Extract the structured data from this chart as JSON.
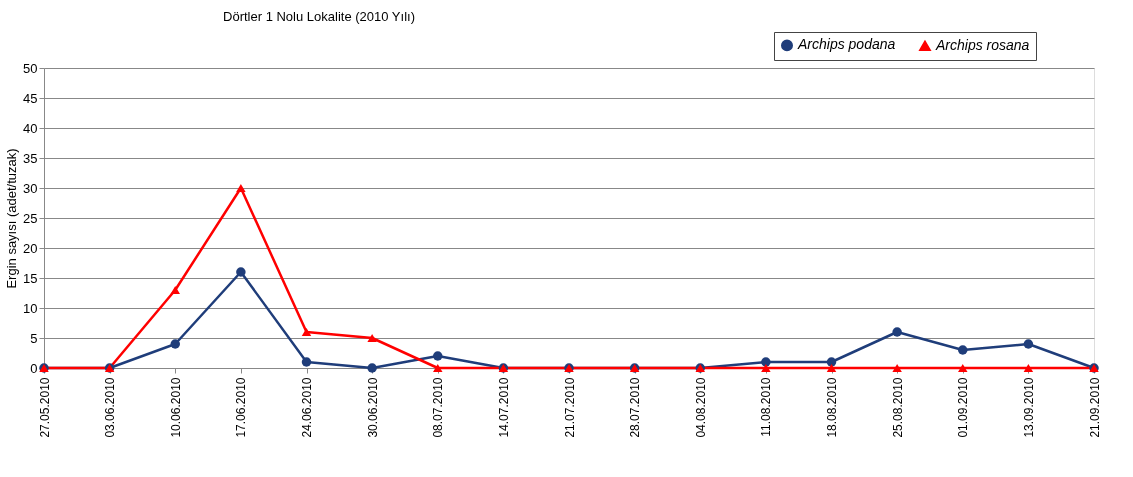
{
  "chart_data": {
    "type": "line",
    "title": "Dörtler 1 Nolu Lokalite (2010 Yılı)",
    "ylabel": "Ergin sayısı (adet/tuzak)",
    "categories": [
      "27.05.2010",
      "03.06.2010",
      "10.06.2010",
      "17.06.2010",
      "24.06.2010",
      "30.06.2010",
      "08.07.2010",
      "14.07.2010",
      "21.07.2010",
      "28.07.2010",
      "04.08.2010",
      "11.08.2010",
      "18.08.2010",
      "25.08.2010",
      "01.09.2010",
      "13.09.2010",
      "21.09.2010"
    ],
    "series": [
      {
        "name": "Archips podana",
        "color": "#1f3d7a",
        "marker": "circle",
        "values": [
          0,
          0,
          4,
          16,
          1,
          0,
          2,
          0,
          0,
          0,
          0,
          1,
          1,
          6,
          3,
          4,
          0
        ]
      },
      {
        "name": "Archips rosana",
        "color": "#ff0000",
        "marker": "triangle",
        "values": [
          0,
          0,
          13,
          30,
          6,
          5,
          0,
          0,
          0,
          0,
          0,
          0,
          0,
          0,
          0,
          0,
          0
        ]
      }
    ],
    "ylim": [
      0,
      50
    ],
    "yticks": [
      0,
      5,
      10,
      15,
      20,
      25,
      30,
      35,
      40,
      45,
      50
    ],
    "grid": "y",
    "legend": "top right",
    "line_style": "solid"
  }
}
